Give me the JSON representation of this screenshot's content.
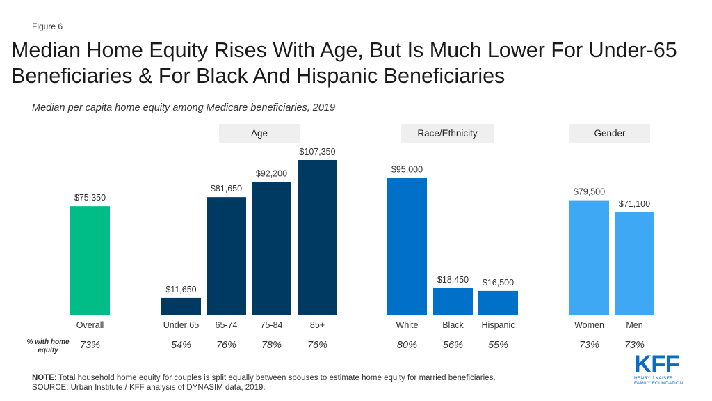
{
  "figure_label": "Figure 6",
  "title": "Median Home Equity Rises With Age, But Is Much Lower For Under-65 Beneficiaries & For Black And Hispanic Beneficiaries",
  "subtitle": "Median per capita home equity among Medicare beneficiaries, 2019",
  "chart_data": {
    "type": "bar",
    "ylim": [
      0,
      107350
    ],
    "grid": false,
    "groups": [
      {
        "label": "",
        "color": "#00bc87",
        "bars": [
          {
            "category": "Overall",
            "value": 75350,
            "value_label": "$75,350",
            "pct": "73%"
          }
        ]
      },
      {
        "label": "Age",
        "color": "#003a63",
        "bars": [
          {
            "category": "Under 65",
            "value": 11650,
            "value_label": "$11,650",
            "pct": "54%"
          },
          {
            "category": "65-74",
            "value": 81650,
            "value_label": "$81,650",
            "pct": "76%"
          },
          {
            "category": "75-84",
            "value": 92200,
            "value_label": "$92,200",
            "pct": "78%"
          },
          {
            "category": "85+",
            "value": 107350,
            "value_label": "$107,350",
            "pct": "76%"
          }
        ]
      },
      {
        "label": "Race/Ethnicity",
        "color": "#0070c8",
        "bars": [
          {
            "category": "White",
            "value": 95000,
            "value_label": "$95,000",
            "pct": "80%"
          },
          {
            "category": "Black",
            "value": 18450,
            "value_label": "$18,450",
            "pct": "56%"
          },
          {
            "category": "Hispanic",
            "value": 16500,
            "value_label": "$16,500",
            "pct": "55%"
          }
        ]
      },
      {
        "label": "Gender",
        "color": "#3ea8f5",
        "bars": [
          {
            "category": "Women",
            "value": 79500,
            "value_label": "$79,500",
            "pct": "73%"
          },
          {
            "category": "Men",
            "value": 71100,
            "value_label": "$71,100",
            "pct": "73%"
          }
        ]
      }
    ],
    "pct_row_label": [
      "% with home",
      "equity"
    ]
  },
  "note": {
    "note_label": "NOTE",
    "note_text": ":  Total household home equity for couples is split equally between spouses to estimate home equity for married beneficiaries.",
    "source": "SOURCE: Urban Institute  / KFF analysis of DYNASIM data, 2019."
  },
  "logo": {
    "mark": "KFF",
    "sub_line1": "HENRY J KAISER",
    "sub_line2": "FAMILY FOUNDATION"
  }
}
